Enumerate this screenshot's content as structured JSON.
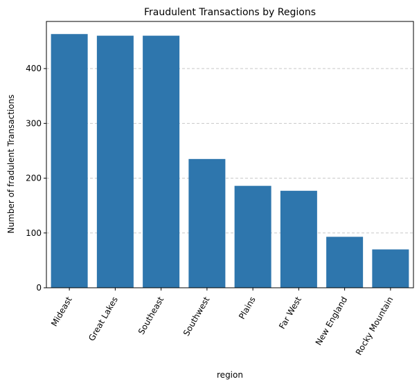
{
  "chart_data": {
    "type": "bar",
    "title": "Fraudulent Transactions by Regions",
    "xlabel": "region",
    "ylabel": "Number of fradulent Transactions",
    "categories": [
      "Mideast",
      "Great Lakes",
      "Southeast",
      "Southwest",
      "Plains",
      "Far West",
      "New England",
      "Rocky Mountain"
    ],
    "values": [
      463,
      460,
      460,
      235,
      186,
      177,
      93,
      70
    ],
    "ylim": [
      0,
      486
    ],
    "yticks": [
      0,
      100,
      200,
      300,
      400
    ],
    "grid": "y-dashed",
    "legend": "none",
    "bar_color": "#2e76ad",
    "grid_color": "#c8c8c8"
  }
}
